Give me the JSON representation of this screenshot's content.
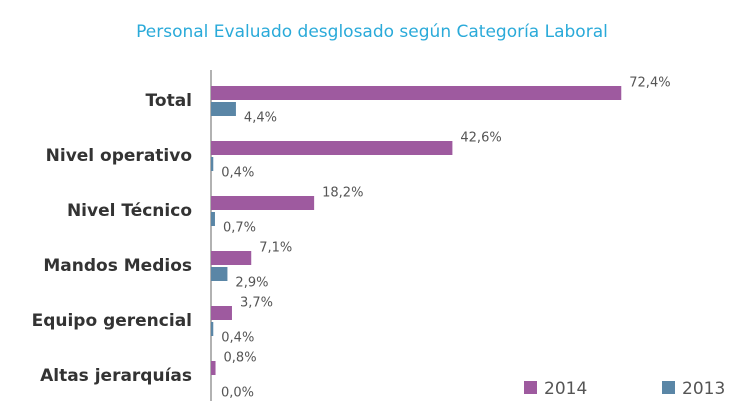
{
  "chart_data": {
    "type": "hbar",
    "title": "Personal Evaluado desglosado según Categoría Laboral",
    "categories": [
      "Total",
      "Nivel operativo",
      "Nivel Técnico",
      "Mandos Medios",
      "Equipo gerencial",
      "Altas jerarquías"
    ],
    "series": [
      {
        "name": "2014",
        "color": "#9e5a9f",
        "values": [
          72.4,
          42.6,
          18.2,
          7.1,
          3.7,
          0.8
        ],
        "value_labels": [
          "72,4%",
          "42,6%",
          "18,2%",
          "7,1%",
          "3,7%",
          "0,8%"
        ]
      },
      {
        "name": "2013",
        "color": "#5a86a6",
        "values": [
          4.4,
          0.4,
          0.7,
          2.9,
          0.4,
          0.0
        ],
        "value_labels": [
          "4,4%",
          "0,4%",
          "0,7%",
          "2,9%",
          "0,4%",
          "0,0%"
        ]
      }
    ],
    "xlim": [
      0,
      75
    ],
    "legend": "bottom-right"
  }
}
